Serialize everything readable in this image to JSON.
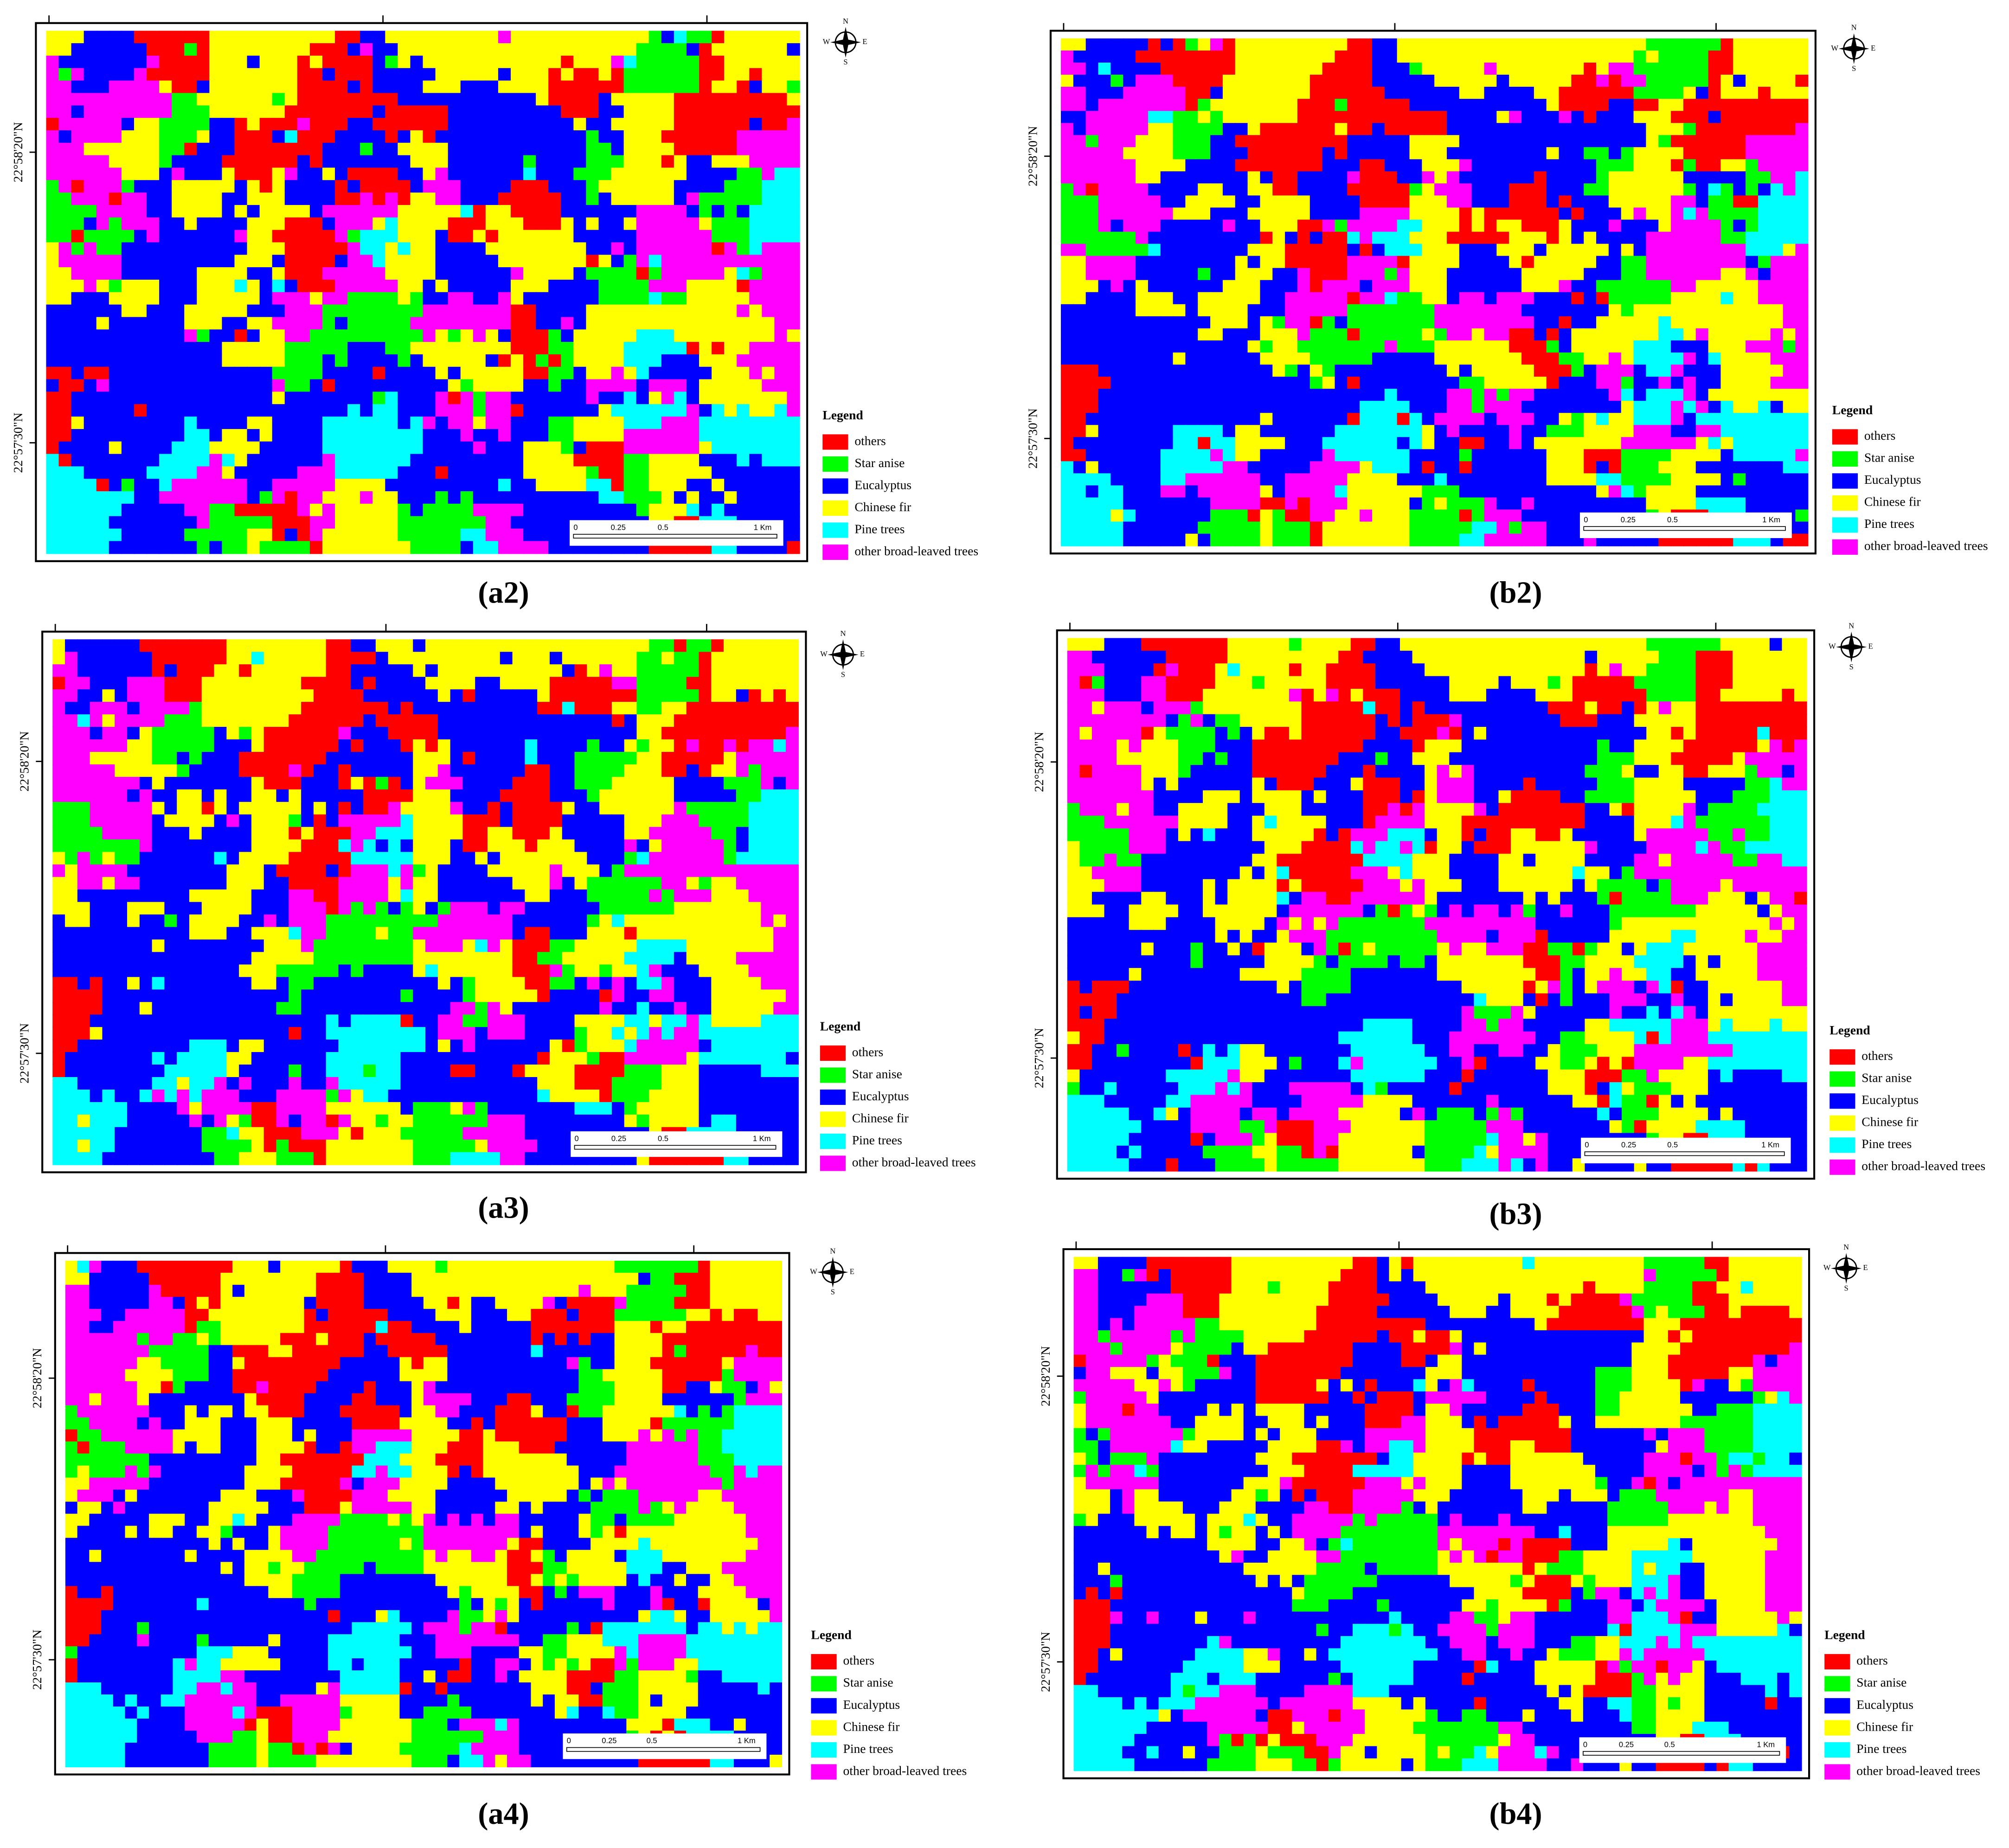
{
  "panels": [
    {
      "label": "(a2)"
    },
    {
      "label": "(b2)"
    },
    {
      "label": "(a3)"
    },
    {
      "label": "(b3)"
    },
    {
      "label": "(a4)"
    },
    {
      "label": "(b4)"
    }
  ],
  "latitude_labels": [
    "22°58'20\"N",
    "22°57'30\"N"
  ],
  "compass": {
    "north": "N",
    "south": "S",
    "east": "E",
    "west": "W"
  },
  "scale_bar": [
    "0",
    "0.25",
    "0.5",
    "1 Km"
  ],
  "legend": {
    "title": "Legend",
    "items": [
      {
        "name": "others",
        "color": "#ff0000"
      },
      {
        "name": "Star anise",
        "color": "#00ff00"
      },
      {
        "name": "Eucalyptus",
        "color": "#0000ff"
      },
      {
        "name": "Chinese fir",
        "color": "#ffff00"
      },
      {
        "name": "Pine trees",
        "color": "#00ffff"
      },
      {
        "name": "other broad-leaved trees",
        "color": "#ff00ff"
      }
    ]
  }
}
